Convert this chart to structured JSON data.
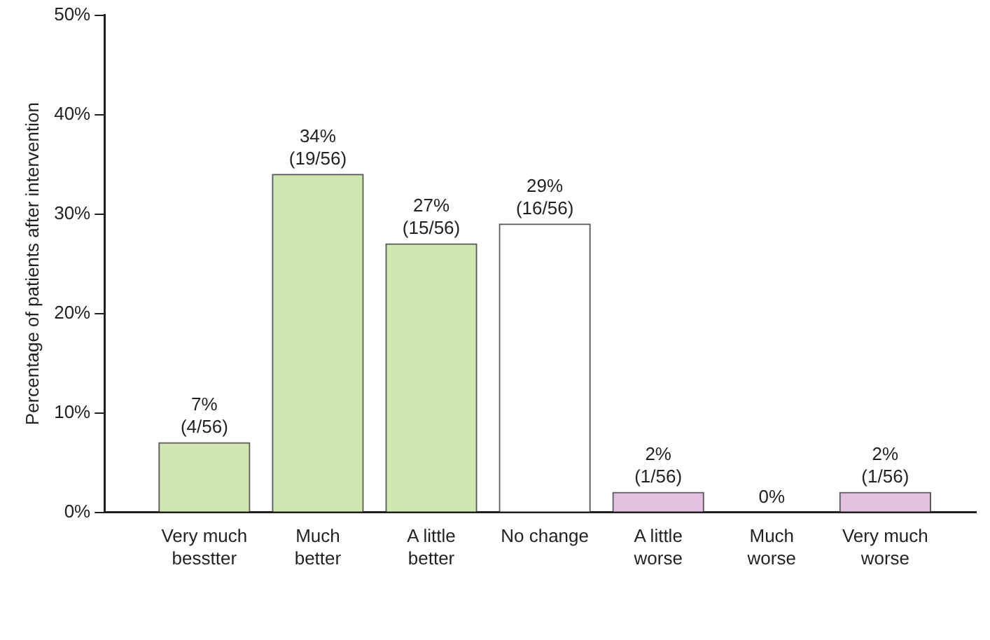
{
  "chart_data": {
    "type": "bar",
    "ylabel": "Percentage of patients after intervention",
    "categories": [
      "Very much besstter",
      "Much better",
      "A little better",
      "No change",
      "A little worse",
      "Much worse",
      "Very much worse"
    ],
    "values": [
      7,
      34,
      27,
      29,
      2,
      0,
      2
    ],
    "colors": [
      "#d1e6b1",
      "#d1e6b1",
      "#d1e6b1",
      "#ffffff",
      "#e2c2e0",
      "#e2c2e0",
      "#e2c2e0"
    ],
    "value_labels": [
      "7%\n(4/56)",
      "34%\n(19/56)",
      "27%\n(15/56)",
      "29%\n(16/56)",
      "2%\n(1/56)",
      "0%",
      "2%\n(1/56)"
    ],
    "ylim": [
      0,
      50
    ],
    "yticks": [
      {
        "value": 0,
        "label": "0%"
      },
      {
        "value": 10,
        "label": "10%"
      },
      {
        "value": 20,
        "label": "20%"
      },
      {
        "value": 30,
        "label": "30%"
      },
      {
        "value": 40,
        "label": "40%"
      },
      {
        "value": 50,
        "label": "50%"
      }
    ],
    "grid": false,
    "legend": false
  }
}
